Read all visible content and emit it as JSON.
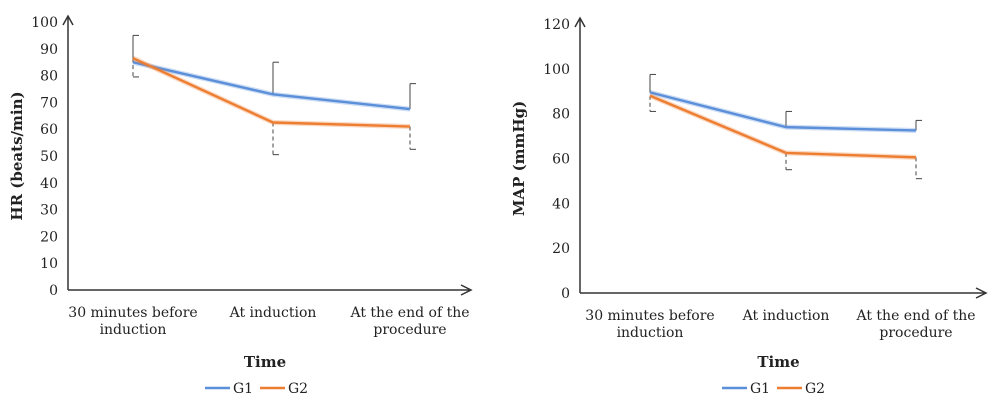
{
  "chart_data": [
    {
      "type": "line",
      "categories": [
        "30 minutes before\ninduction",
        "At induction",
        "At the end of the\nprocedure"
      ],
      "series": [
        {
          "name": "G1",
          "color": "#5B8FD9",
          "values": [
            85,
            73,
            67.5
          ],
          "error_up": [
            10,
            12,
            9.5
          ]
        },
        {
          "name": "G2",
          "color": "#ED7D31",
          "values": [
            86.5,
            62.5,
            61
          ],
          "error_down": [
            7,
            12,
            8.5
          ]
        }
      ],
      "xlabel": "Time",
      "ylabel": "HR (beats/min)",
      "ylim": [
        0,
        100
      ],
      "yticks": [
        0,
        10,
        20,
        30,
        40,
        50,
        60,
        70,
        80,
        90,
        100
      ],
      "grid": false,
      "legend": "bottom-center"
    },
    {
      "type": "line",
      "categories": [
        "30 minutes before\ninduction",
        "At induction",
        "At the end of the\nprocedure"
      ],
      "series": [
        {
          "name": "G1",
          "color": "#5B8FD9",
          "values": [
            89.5,
            74,
            72.5
          ],
          "error_up": [
            8,
            7,
            4.5
          ]
        },
        {
          "name": "G2",
          "color": "#ED7D31",
          "values": [
            88,
            62.5,
            60.5
          ],
          "error_down": [
            7,
            7.5,
            9.5
          ]
        }
      ],
      "xlabel": "Time",
      "ylabel": "MAP (mmHg)",
      "ylim": [
        0,
        120
      ],
      "yticks": [
        0,
        20,
        40,
        60,
        80,
        100,
        120
      ],
      "grid": false,
      "legend": "bottom-center"
    }
  ]
}
